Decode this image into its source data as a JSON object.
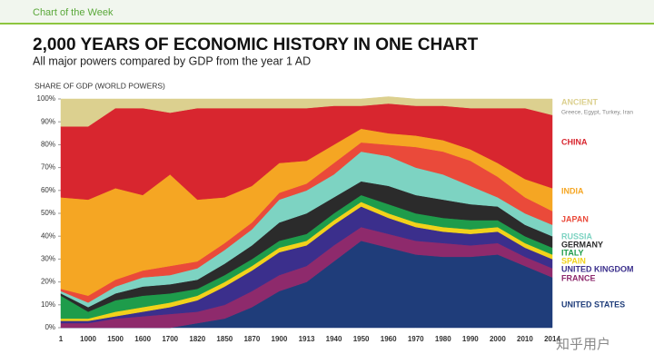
{
  "header": {
    "label": "Chart of the Week"
  },
  "watermark": "知乎用户",
  "chart_data": {
    "type": "stacked-area",
    "title": "2,000 YEARS OF ECONOMIC HISTORY IN ONE CHART",
    "subtitle": "All major powers compared by GDP from the year 1 AD",
    "y_label": "SHARE OF GDP (WORLD POWERS)",
    "categories": [
      "1",
      "1000",
      "1500",
      "1600",
      "1700",
      "1820",
      "1850",
      "1870",
      "1900",
      "1913",
      "1940",
      "1950",
      "1960",
      "1970",
      "1980",
      "1990",
      "2000",
      "2010",
      "2014"
    ],
    "ylim": [
      0,
      100
    ],
    "yticks": [
      {
        "value": 0,
        "label": "0%"
      },
      {
        "value": 10,
        "label": "10%"
      },
      {
        "value": 20,
        "label": "20%"
      },
      {
        "value": 30,
        "label": "30%"
      },
      {
        "value": 40,
        "label": "40%"
      },
      {
        "value": 50,
        "label": "50%"
      },
      {
        "value": 60,
        "label": "60%"
      },
      {
        "value": 70,
        "label": "70%"
      },
      {
        "value": 80,
        "label": "80%"
      },
      {
        "value": 90,
        "label": "90%"
      },
      {
        "value": 100,
        "label": "100%"
      }
    ],
    "series": [
      {
        "name": "UNITED STATES",
        "color": "#1f3d7a",
        "values": [
          0,
          0,
          0,
          0,
          0,
          2,
          4,
          9,
          16,
          20,
          29,
          38,
          35,
          32,
          31,
          31,
          32,
          27,
          22
        ]
      },
      {
        "name": "FRANCE",
        "color": "#8e2a6c",
        "values": [
          2,
          2,
          4,
          5,
          6,
          5,
          6,
          7,
          7,
          7,
          7,
          6,
          6,
          6,
          6,
          5,
          5,
          4,
          4
        ]
      },
      {
        "name": "UNITED KINGDOM",
        "color": "#3b2f8c",
        "values": [
          1,
          1,
          1,
          2,
          3,
          5,
          8,
          9,
          10,
          9,
          9,
          9,
          7,
          6,
          5,
          5,
          5,
          4,
          4
        ]
      },
      {
        "name": "SPAIN",
        "color": "#f2d21b",
        "values": [
          1,
          1,
          2,
          2,
          2,
          2,
          2,
          2,
          2,
          2,
          2,
          2,
          2,
          2,
          2,
          2,
          2,
          2,
          2
        ]
      },
      {
        "name": "ITALY",
        "color": "#1e9c4b",
        "values": [
          10,
          3,
          5,
          5,
          4,
          3,
          3,
          3,
          3,
          3,
          3,
          3,
          4,
          4,
          4,
          4,
          3,
          3,
          3
        ]
      },
      {
        "name": "GERMANY",
        "color": "#2b2b2b",
        "values": [
          1,
          2,
          3,
          4,
          4,
          4,
          5,
          6,
          8,
          9,
          7,
          6,
          8,
          8,
          8,
          7,
          6,
          5,
          5
        ]
      },
      {
        "name": "RUSSIA",
        "color": "#7dd3c2",
        "values": [
          1,
          2,
          3,
          4,
          4,
          5,
          6,
          7,
          10,
          10,
          10,
          13,
          13,
          12,
          11,
          8,
          4,
          5,
          5
        ]
      },
      {
        "name": "JAPAN",
        "color": "#ea4a3a",
        "values": [
          1,
          3,
          3,
          3,
          4,
          3,
          3,
          3,
          3,
          3,
          5,
          4,
          5,
          9,
          10,
          11,
          9,
          7,
          6
        ]
      },
      {
        "name": "INDIA",
        "color": "#f5a623",
        "values": [
          40,
          42,
          40,
          33,
          40,
          27,
          20,
          16,
          13,
          10,
          8,
          6,
          5,
          5,
          5,
          5,
          6,
          8,
          10
        ]
      },
      {
        "name": "CHINA",
        "color": "#d8262f",
        "values": [
          31,
          32,
          35,
          38,
          27,
          40,
          39,
          34,
          24,
          23,
          17,
          10,
          13,
          13,
          15,
          18,
          24,
          31,
          32
        ]
      },
      {
        "name": "ANCIENT",
        "color": "#dcd08f",
        "values": [
          12,
          12,
          4,
          4,
          6,
          4,
          4,
          4,
          4,
          4,
          3,
          3,
          3,
          3,
          3,
          4,
          4,
          4,
          7
        ]
      }
    ],
    "ancient_note": "Greece, Egypt, Turkey, Iran"
  }
}
